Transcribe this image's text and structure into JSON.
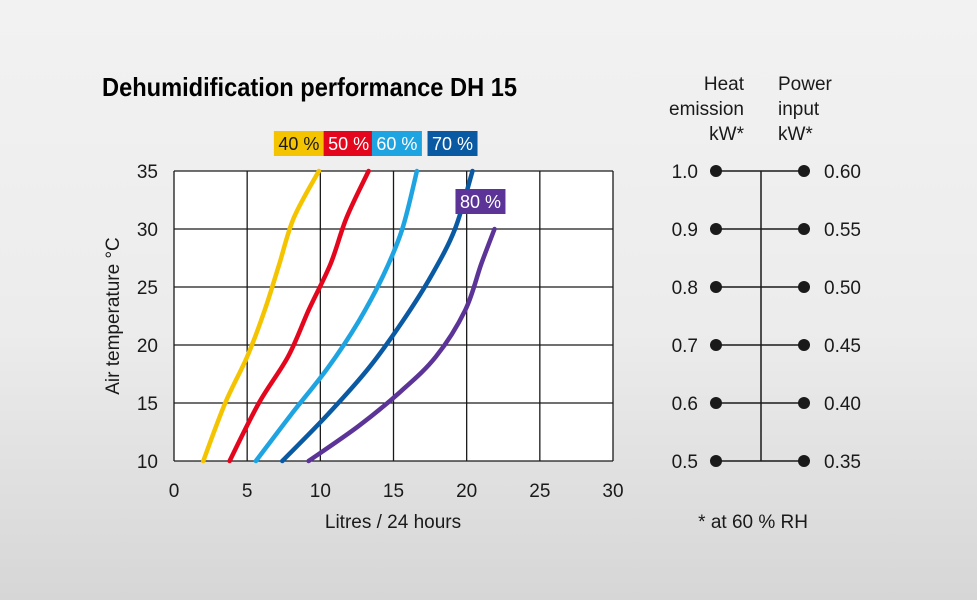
{
  "chart_data": {
    "type": "line",
    "title": "Dehumidification performance DH 15",
    "xlabel": "Litres / 24 hours",
    "ylabel": "Air temperature °C",
    "xlim": [
      0,
      30
    ],
    "ylim": [
      10,
      35
    ],
    "xticks": [
      "0",
      "5",
      "10",
      "15",
      "20",
      "25",
      "30"
    ],
    "yticks": [
      "10",
      "15",
      "20",
      "25",
      "30",
      "35"
    ],
    "grid": true,
    "series": [
      {
        "name": "40 %",
        "color": "#f5c400",
        "label_dark": true,
        "points": [
          [
            2.0,
            10
          ],
          [
            3.5,
            15
          ],
          [
            5.0,
            19
          ],
          [
            6.2,
            23
          ],
          [
            7.2,
            27
          ],
          [
            8.2,
            31
          ],
          [
            9.9,
            35
          ]
        ]
      },
      {
        "name": "50 %",
        "color": "#e3061d",
        "label_dark": false,
        "points": [
          [
            3.8,
            10
          ],
          [
            5.8,
            15
          ],
          [
            7.8,
            19
          ],
          [
            9.2,
            23
          ],
          [
            10.7,
            27
          ],
          [
            11.8,
            31
          ],
          [
            13.3,
            35
          ]
        ]
      },
      {
        "name": "60 %",
        "color": "#1fa4e2",
        "label_dark": false,
        "points": [
          [
            5.6,
            10
          ],
          [
            8.0,
            14
          ],
          [
            10.5,
            18
          ],
          [
            12.6,
            22
          ],
          [
            14.3,
            26
          ],
          [
            15.6,
            30
          ],
          [
            16.6,
            35
          ]
        ]
      },
      {
        "name": "70 %",
        "color": "#0a5aa3",
        "label_dark": false,
        "points": [
          [
            7.4,
            10
          ],
          [
            10.5,
            14
          ],
          [
            13.3,
            18
          ],
          [
            15.6,
            22
          ],
          [
            17.6,
            26
          ],
          [
            19.2,
            30
          ],
          [
            20.4,
            35
          ]
        ]
      },
      {
        "name": "80 %",
        "color": "#5c3497",
        "label_dark": false,
        "points": [
          [
            9.2,
            10
          ],
          [
            12.6,
            13
          ],
          [
            15.5,
            16
          ],
          [
            17.9,
            19
          ],
          [
            19.9,
            23
          ],
          [
            21.0,
            27
          ],
          [
            21.9,
            30
          ]
        ]
      }
    ]
  },
  "scale": {
    "heat_emission_header": [
      "Heat",
      "emission",
      "kW*"
    ],
    "power_input_header": [
      "Power",
      "input",
      "kW*"
    ],
    "heat_values": [
      "1.0",
      "0.9",
      "0.8",
      "0.7",
      "0.6",
      "0.5"
    ],
    "power_values": [
      "0.60",
      "0.55",
      "0.50",
      "0.45",
      "0.40",
      "0.35"
    ],
    "footnote": "* at 60 % RH"
  }
}
